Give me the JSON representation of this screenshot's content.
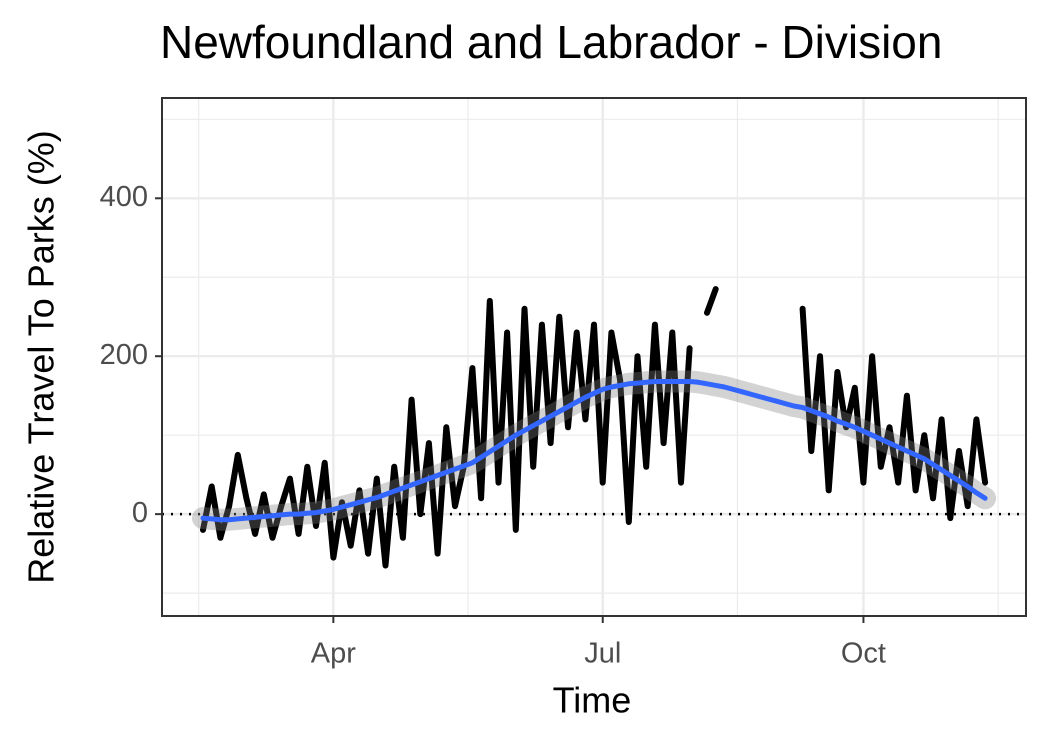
{
  "chart_data": {
    "type": "line",
    "title": "Newfoundland and Labrador - Division",
    "x_label": "Time",
    "y_label": "Relative Travel To Parks (%)",
    "categories": [
      null,
      null,
      null,
      null,
      null,
      null,
      null,
      null,
      null,
      null,
      null,
      null,
      null,
      null,
      null,
      "Apr",
      null,
      null,
      null,
      null,
      null,
      null,
      null,
      null,
      null,
      null,
      null,
      null,
      null,
      null,
      null,
      null,
      null,
      null,
      null,
      null,
      null,
      null,
      null,
      null,
      null,
      null,
      null,
      null,
      null,
      null,
      "Jul",
      null,
      null,
      null,
      null,
      null,
      null,
      null,
      null,
      null,
      null,
      null,
      null,
      null,
      null,
      null,
      null,
      null,
      null,
      null,
      null,
      null,
      null,
      null,
      null,
      null,
      null,
      null,
      null,
      null,
      "Oct",
      null,
      null,
      null,
      null,
      null,
      null,
      null,
      null,
      null,
      null,
      null,
      null,
      null,
      null
    ],
    "series": [
      {
        "color": "#000000",
        "values": [
          -20,
          35,
          -30,
          10,
          75,
          20,
          -25,
          25,
          -30,
          10,
          45,
          -25,
          60,
          -15,
          65,
          -55,
          15,
          -40,
          30,
          -50,
          45,
          -65,
          60,
          -30,
          145,
          0,
          90,
          -50,
          110,
          10,
          60,
          185,
          20,
          270,
          40,
          230,
          -20,
          260,
          60,
          240,
          90,
          250,
          110,
          230,
          120,
          240,
          40,
          230,
          170,
          -10,
          200,
          60,
          240,
          90,
          230,
          40,
          210,
          null,
          255,
          285,
          null,
          null,
          null,
          null,
          null,
          null,
          null,
          null,
          null,
          260,
          80,
          200,
          30,
          180,
          110,
          160,
          40,
          200,
          60,
          110,
          40,
          150,
          30,
          100,
          20,
          120,
          -5,
          80,
          10,
          120,
          40
        ]
      },
      {
        "color": "#3366FF",
        "values": [
          -5,
          -6,
          -7,
          -7,
          -6,
          -5,
          -4,
          -3,
          -2,
          -1,
          0,
          0,
          1,
          2,
          4,
          6,
          9,
          12,
          15,
          18,
          21,
          25,
          29,
          33,
          37,
          41,
          45,
          49,
          53,
          57,
          61,
          65,
          72,
          79,
          86,
          93,
          100,
          106,
          112,
          118,
          124,
          130,
          136,
          142,
          148,
          153,
          158,
          161,
          163,
          165,
          166,
          167,
          168,
          168,
          168,
          168,
          168,
          167,
          165,
          163,
          161,
          158,
          155,
          152,
          149,
          146,
          143,
          140,
          137,
          135,
          131,
          127,
          123,
          118,
          114,
          110,
          105,
          100,
          95,
          90,
          85,
          80,
          75,
          70,
          63,
          56,
          49,
          42,
          35,
          27,
          20
        ]
      }
    ],
    "hline": 0,
    "ylim": [
      -129,
      527
    ],
    "yticks": [
      0,
      200,
      400
    ],
    "grid": true
  }
}
